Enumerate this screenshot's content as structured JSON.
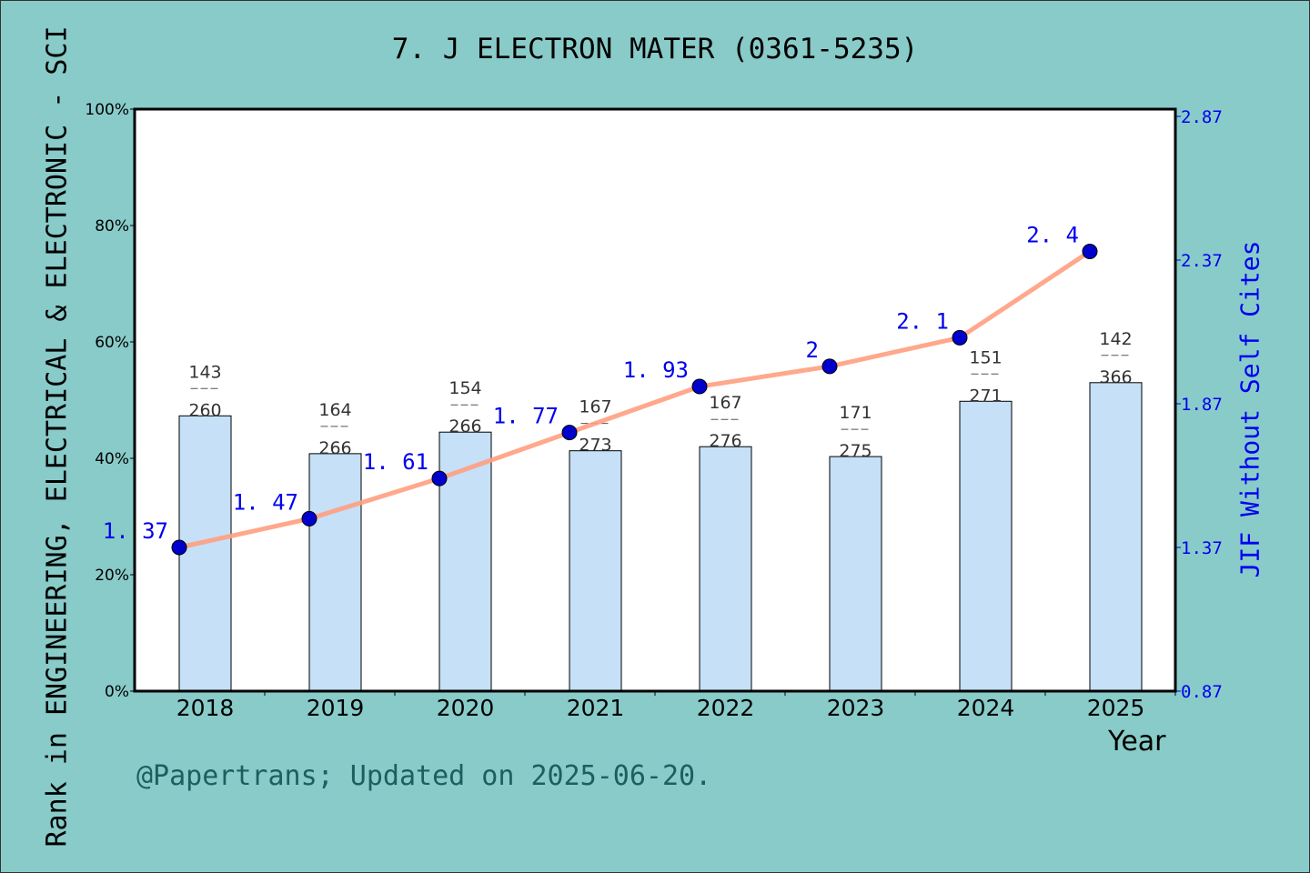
{
  "chart_data": {
    "type": "bar+line",
    "title": "7. J ELECTRON MATER (0361-5235)",
    "xlabel": "Year",
    "ylabel": "Rank in ENGINEERING, ELECTRICAL & ELECTRONIC - SCI",
    "y2label": "JIF Without Self Cites",
    "categories": [
      "2018",
      "2019",
      "2020",
      "2021",
      "2022",
      "2023",
      "2024",
      "2025"
    ],
    "ylim": [
      0,
      100
    ],
    "yticks": [
      "0%",
      "20%",
      "40%",
      "60%",
      "80%",
      "100%"
    ],
    "y2lim": [
      0.87,
      2.87
    ],
    "y2ticks": [
      "0.87",
      "1.37",
      "1.87",
      "2.37",
      "2.87"
    ],
    "bars": {
      "values": [
        47.3,
        40.8,
        44.5,
        41.3,
        42.0,
        40.3,
        49.8,
        53.0
      ],
      "color": "#c5e0f7"
    },
    "rank_labels": [
      [
        "143",
        "260"
      ],
      [
        "164",
        "266"
      ],
      [
        "154",
        "266"
      ],
      [
        "167",
        "273"
      ],
      [
        "167",
        "276"
      ],
      [
        "171",
        "275"
      ],
      [
        "151",
        "271"
      ],
      [
        "142",
        "366"
      ]
    ],
    "line": {
      "values": [
        1.37,
        1.47,
        1.61,
        1.77,
        1.93,
        2,
        2.1,
        2.4
      ],
      "labels": [
        "1. 37",
        "1. 47",
        "1. 61",
        "1. 77",
        "1. 93",
        "2",
        "2. 1",
        "2. 4"
      ],
      "color": "#ff9f7f",
      "marker_color": "#0000cc"
    },
    "grid": false
  },
  "footer": "@Papertrans; Updated on 2025-06-20."
}
